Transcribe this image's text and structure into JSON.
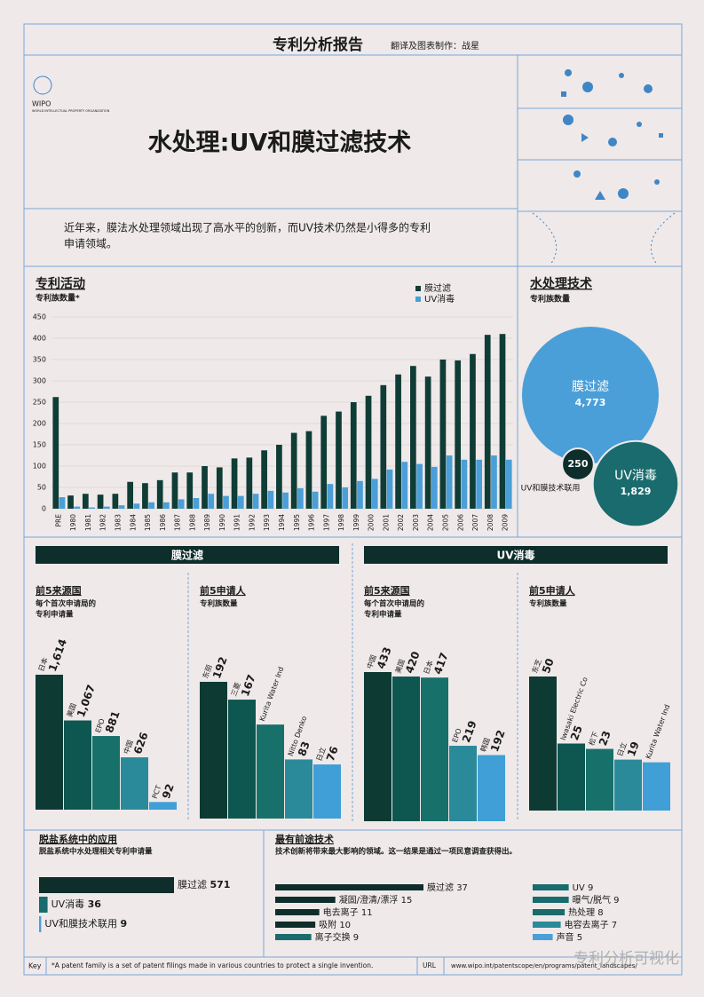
{
  "header": {
    "report": "专利分析报告",
    "credit": "翻译及图表制作：战星",
    "logo": "WIPO",
    "logo_sub": "WORLD INTELLECTUAL PROPERTY ORGANIZATION",
    "title": "水处理:UV和膜过滤技术"
  },
  "intro": [
    "近年来，膜法水处理领域出现了高水平的创新，而UV技术仍然是小得多的专利",
    "申请领域。"
  ],
  "section_titles": [
    "膜过滤",
    "UV消毒"
  ],
  "chart_data": [
    {
      "type": "bar",
      "title": "专利活动",
      "subtitle": "专利族数量*",
      "categories": [
        "PRE",
        "1980",
        "1981",
        "1982",
        "1983",
        "1984",
        "1985",
        "1986",
        "1987",
        "1988",
        "1989",
        "1990",
        "1991",
        "1992",
        "1993",
        "1994",
        "1995",
        "1996",
        "1997",
        "1998",
        "1999",
        "2000",
        "2001",
        "2002",
        "2003",
        "2004",
        "2005",
        "2006",
        "2007",
        "2008",
        "2009"
      ],
      "series": [
        {
          "name": "膜过滤",
          "color": "#0f3d36",
          "values": [
            262,
            31,
            35,
            33,
            35,
            63,
            60,
            67,
            85,
            85,
            100,
            97,
            118,
            120,
            137,
            150,
            178,
            182,
            218,
            228,
            250,
            265,
            290,
            315,
            335,
            310,
            350,
            348,
            363,
            408,
            410
          ]
        },
        {
          "name": "UV消毒",
          "color": "#4a9fd8",
          "values": [
            27,
            5,
            3,
            5,
            8,
            12,
            15,
            15,
            22,
            25,
            35,
            30,
            30,
            35,
            42,
            38,
            48,
            40,
            58,
            50,
            65,
            70,
            92,
            110,
            105,
            98,
            125,
            115,
            115,
            125,
            115
          ]
        }
      ],
      "ylim": [
        0,
        450
      ],
      "yticks": [
        0,
        50,
        100,
        150,
        200,
        250,
        300,
        350,
        400,
        450
      ],
      "grid": true
    },
    {
      "type": "bubble",
      "title": "水处理技术",
      "subtitle": "专利族数量",
      "categories": [
        "膜过滤",
        "UV消毒",
        "UV和膜技术联用"
      ],
      "values": [
        4773,
        1829,
        250
      ],
      "value_labels": [
        "4,773",
        "1,829",
        "250"
      ],
      "colors": [
        "#4a9fd8",
        "#1a6b6e",
        "#0d2e2b"
      ]
    },
    {
      "type": "column",
      "title": "前5来源国",
      "subtitle": [
        "每个首次申请局的",
        "专利申请量"
      ],
      "categories": [
        "日本",
        "美国",
        "EPO",
        "中国",
        "PCT"
      ],
      "values": [
        1614,
        1067,
        881,
        626,
        92
      ],
      "value_labels": [
        "1,614",
        "1,067",
        "881",
        "626",
        "92"
      ],
      "colors": [
        "#0d3b34",
        "#0e5650",
        "#177069",
        "#2a8a9a",
        "#3f9fd6"
      ]
    },
    {
      "type": "column",
      "title": "前5申请人",
      "subtitle": [
        "专利族数量"
      ],
      "categories": [
        "东丽",
        "三菱",
        "Kurita Water Ind",
        "Nitto Denko",
        "日立"
      ],
      "values": [
        192,
        167,
        132,
        83,
        76
      ],
      "value_labels": [
        "192",
        "167",
        null,
        "83",
        "76"
      ],
      "colors": [
        "#0d3b34",
        "#0e5650",
        "#177069",
        "#2a8a9a",
        "#3f9fd6"
      ]
    },
    {
      "type": "column",
      "title": "前5来源国",
      "subtitle": [
        "每个首次申请局的",
        "专利申请量"
      ],
      "categories": [
        "中国",
        "美国",
        "日本",
        "EPO",
        "韩国"
      ],
      "values": [
        433,
        420,
        417,
        219,
        192
      ],
      "value_labels": [
        "433",
        "420",
        "417",
        "219",
        "192"
      ],
      "colors": [
        "#0d3b34",
        "#0e5650",
        "#177069",
        "#2a8a9a",
        "#3f9fd6"
      ]
    },
    {
      "type": "column",
      "title": "前5申请人",
      "subtitle": [
        "专利族数量"
      ],
      "categories": [
        "东芝",
        "Iwasaki Electric Co",
        "松下",
        "日立",
        "Kurita Water Ind"
      ],
      "values": [
        50,
        25,
        23,
        19,
        18
      ],
      "value_labels": [
        "50",
        "25",
        "23",
        "19",
        null
      ],
      "colors": [
        "#0d3b34",
        "#0e5650",
        "#177069",
        "#2a8a9a",
        "#3f9fd6"
      ]
    },
    {
      "type": "hbar",
      "title": "脱盐系统中的应用",
      "subtitle": "脱盐系统中水处理相关专利申请量",
      "categories": [
        "膜过滤",
        "UV消毒",
        "UV和膜技术联用"
      ],
      "values": [
        571,
        36,
        9
      ],
      "colors": [
        "#0d2e2b",
        "#1a6b6e",
        "#4a9fd8"
      ]
    },
    {
      "type": "hbar2",
      "title": "最有前途技术",
      "subtitle": "技术创新将带来最大影响的领域。这一结果是通过一项民意调查获得出。",
      "categories": [
        "膜过滤",
        "凝固/澄清/漂浮",
        "电去离子",
        "吸附",
        "离子交换",
        "UV",
        "曝气/脱气",
        "热处理",
        "电容去离子",
        "声音"
      ],
      "values": [
        37,
        15,
        11,
        10,
        9,
        9,
        9,
        8,
        7,
        5
      ],
      "colors": [
        "#0d2e2b",
        "#0d2e2b",
        "#0d2e2b",
        "#0d2e2b",
        "#1a6b6e",
        "#1a6b6e",
        "#1a6b6e",
        "#1a6b6e",
        "#2a8a9a",
        "#4a9fd8"
      ]
    }
  ],
  "footer": {
    "key": "Key",
    "note": "*A patent family is a set of patent filings made in various countries to protect a single invention.",
    "url_label": "URL",
    "url": "www.wipo.int/patentscope/en/programs/patent_landscapes/",
    "watermark": "专利分析可视化"
  }
}
